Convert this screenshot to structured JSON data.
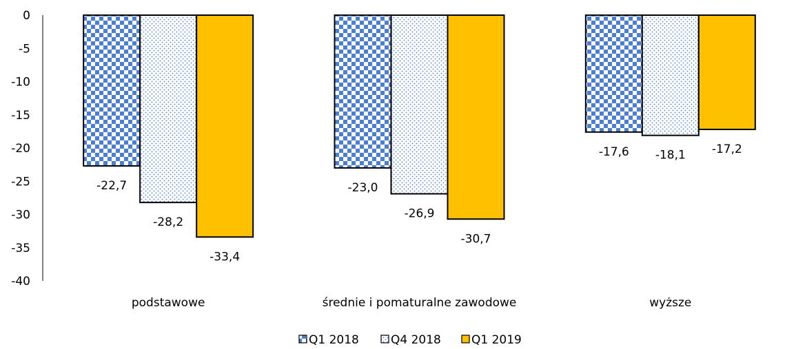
{
  "chart_data": {
    "type": "bar",
    "title": "",
    "xlabel": "",
    "ylabel": "",
    "categories": [
      "podstawowe",
      "średnie i pomaturalne zawodowe",
      "wyższe"
    ],
    "series": [
      {
        "name": "Q1 2018",
        "values": [
          -22.7,
          -23.0,
          -17.6
        ],
        "labels": [
          "-22,7",
          "-23,0",
          "-17,6"
        ],
        "pattern": "checker",
        "color": "#4a7fd1"
      },
      {
        "name": "Q4 2018",
        "values": [
          -28.2,
          -26.9,
          -18.1
        ],
        "labels": [
          "-28,2",
          "-26,9",
          "-18,1"
        ],
        "pattern": "dots",
        "color": "#4a7fd1"
      },
      {
        "name": "Q1 2019",
        "values": [
          -33.4,
          -30.7,
          -17.2
        ],
        "labels": [
          "-33,4",
          "-30,7",
          "-17,2"
        ],
        "pattern": "solid",
        "color": "#ffc000"
      }
    ],
    "ylim": [
      -40,
      0
    ],
    "yticks": [
      0,
      -5,
      -10,
      -15,
      -20,
      -25,
      -30,
      -35,
      -40
    ],
    "grid": false,
    "legend": "bottom-center"
  }
}
